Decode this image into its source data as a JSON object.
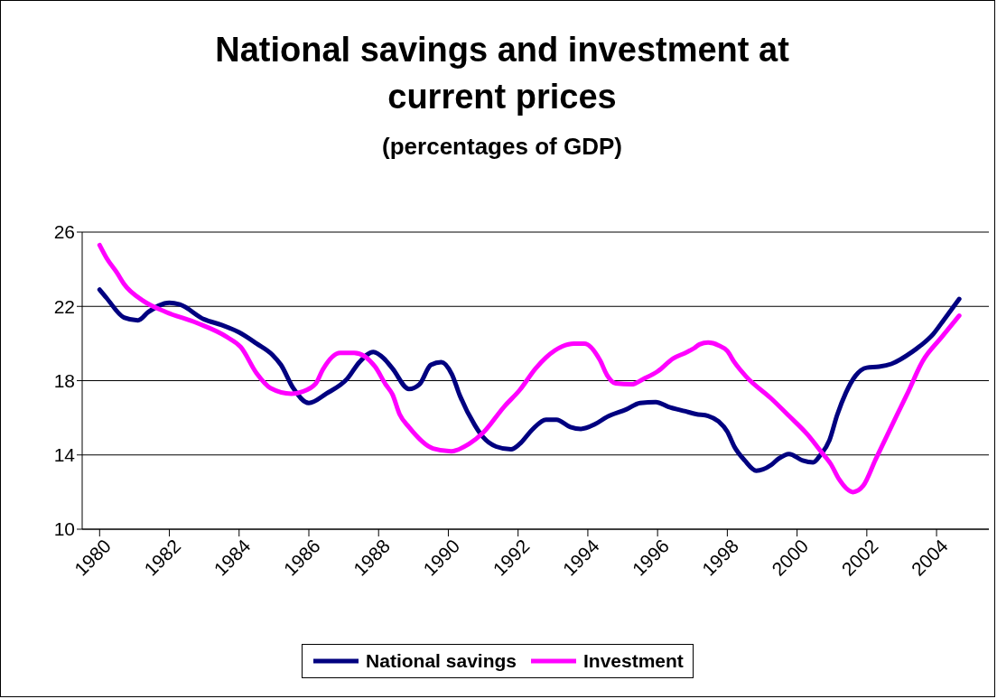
{
  "chart_data": {
    "type": "line",
    "title": "National savings and investment at current prices",
    "subtitle": "(percentages of GDP)",
    "xlim": [
      1979.5,
      2005.5
    ],
    "xticks": [
      1980,
      1982,
      1984,
      1986,
      1988,
      1990,
      1992,
      1994,
      1996,
      1998,
      2000,
      2002,
      2004
    ],
    "ylim": [
      10,
      26
    ],
    "yticks": [
      10,
      14,
      18,
      22,
      26
    ],
    "grid": "y",
    "legend": "bottom",
    "marker": "none",
    "line_style": "solid",
    "series": [
      {
        "name": "National savings",
        "color": "#000080",
        "x": [
          1980,
          1980.2,
          1980.7,
          1981.1,
          1981.4,
          1982,
          1982.3,
          1983,
          1983.5,
          1984,
          1984.5,
          1984.95,
          1985.2,
          1985.55,
          1986,
          1986.5,
          1987.1,
          1987.45,
          1987.85,
          1988.15,
          1988.4,
          1988.87,
          1989.17,
          1989.5,
          1989.8,
          1990.1,
          1990.33,
          1990.76,
          1991,
          1991.37,
          1991.8,
          1992.05,
          1992.4,
          1992.8,
          1993.1,
          1993.5,
          1993.8,
          1994.2,
          1994.55,
          1995.1,
          1995.5,
          1995.95,
          1996.3,
          1996.8,
          1997.1,
          1997.45,
          1997.75,
          1998,
          1998.2,
          1998.5,
          1998.83,
          1999.25,
          1999.47,
          1999.77,
          2000.16,
          2000.46,
          2000.67,
          2000.93,
          2001.15,
          2001.4,
          2001.67,
          2002,
          2002.35,
          2002.7,
          2003.3,
          2003.55,
          2003.9,
          2004.2,
          2004.65
        ],
        "values": [
          22.9,
          22.45,
          21.4,
          21.25,
          21.7,
          22.2,
          22.1,
          21.3,
          21,
          20.6,
          20,
          19.4,
          18.85,
          17.6,
          16.8,
          17.3,
          18.1,
          19,
          19.55,
          19.2,
          18.65,
          17.55,
          17.8,
          18.85,
          19,
          18.35,
          17.2,
          15.6,
          14.95,
          14.45,
          14.3,
          14.6,
          15.35,
          15.9,
          15.9,
          15.5,
          15.4,
          15.65,
          16.05,
          16.45,
          16.8,
          16.85,
          16.6,
          16.35,
          16.2,
          16.1,
          15.8,
          15.25,
          14.45,
          13.7,
          13.15,
          13.45,
          13.8,
          14.05,
          13.7,
          13.6,
          14,
          14.8,
          16.15,
          17.35,
          18.25,
          18.7,
          18.75,
          18.9,
          19.55,
          19.9,
          20.5,
          21.25,
          22.4
        ]
      },
      {
        "name": "Investment",
        "color": "#ff00ff",
        "x": [
          1980,
          1980.2,
          1980.5,
          1980.7,
          1981.25,
          1981.9,
          1982.8,
          1983.65,
          1984.05,
          1984.5,
          1984.9,
          1985.5,
          1985.8,
          1986.2,
          1986.4,
          1986.9,
          1987.3,
          1987.9,
          1988.2,
          1988.4,
          1988.6,
          1988.87,
          1989.56,
          1990.08,
          1990.6,
          1991,
          1991.6,
          1992.05,
          1992.5,
          1992.8,
          1993.27,
          1993.6,
          1993.9,
          1994.35,
          1994.55,
          1994.8,
          1995.25,
          1995.6,
          1996,
          1996.45,
          1996.8,
          1997.05,
          1997.2,
          1997.45,
          1997.75,
          1998,
          1998.2,
          1998.55,
          1999.25,
          1999.77,
          2000.3,
          2000.7,
          2000.97,
          2001.2,
          2001.6,
          2001.9,
          2002.25,
          2002.85,
          2003.15,
          2003.6,
          2004.15,
          2004.65
        ],
        "values": [
          25.3,
          24.6,
          23.8,
          23.2,
          22.3,
          21.7,
          21.1,
          20.35,
          19.8,
          18.4,
          17.6,
          17.3,
          17.4,
          17.85,
          18.6,
          19.5,
          19.5,
          18.75,
          17.8,
          17.25,
          16.2,
          15.5,
          14.35,
          14.2,
          14.6,
          15.2,
          16.6,
          17.5,
          18.65,
          19.25,
          19.85,
          20,
          20,
          19.1,
          18.3,
          17.85,
          17.8,
          18.1,
          18.5,
          19.2,
          19.5,
          19.75,
          19.95,
          20.05,
          19.9,
          19.6,
          19,
          18.2,
          17.05,
          16.1,
          15.1,
          14.15,
          13.5,
          12.7,
          12,
          12.35,
          13.75,
          16.1,
          17.25,
          19.05,
          20.35,
          21.5
        ]
      }
    ]
  }
}
